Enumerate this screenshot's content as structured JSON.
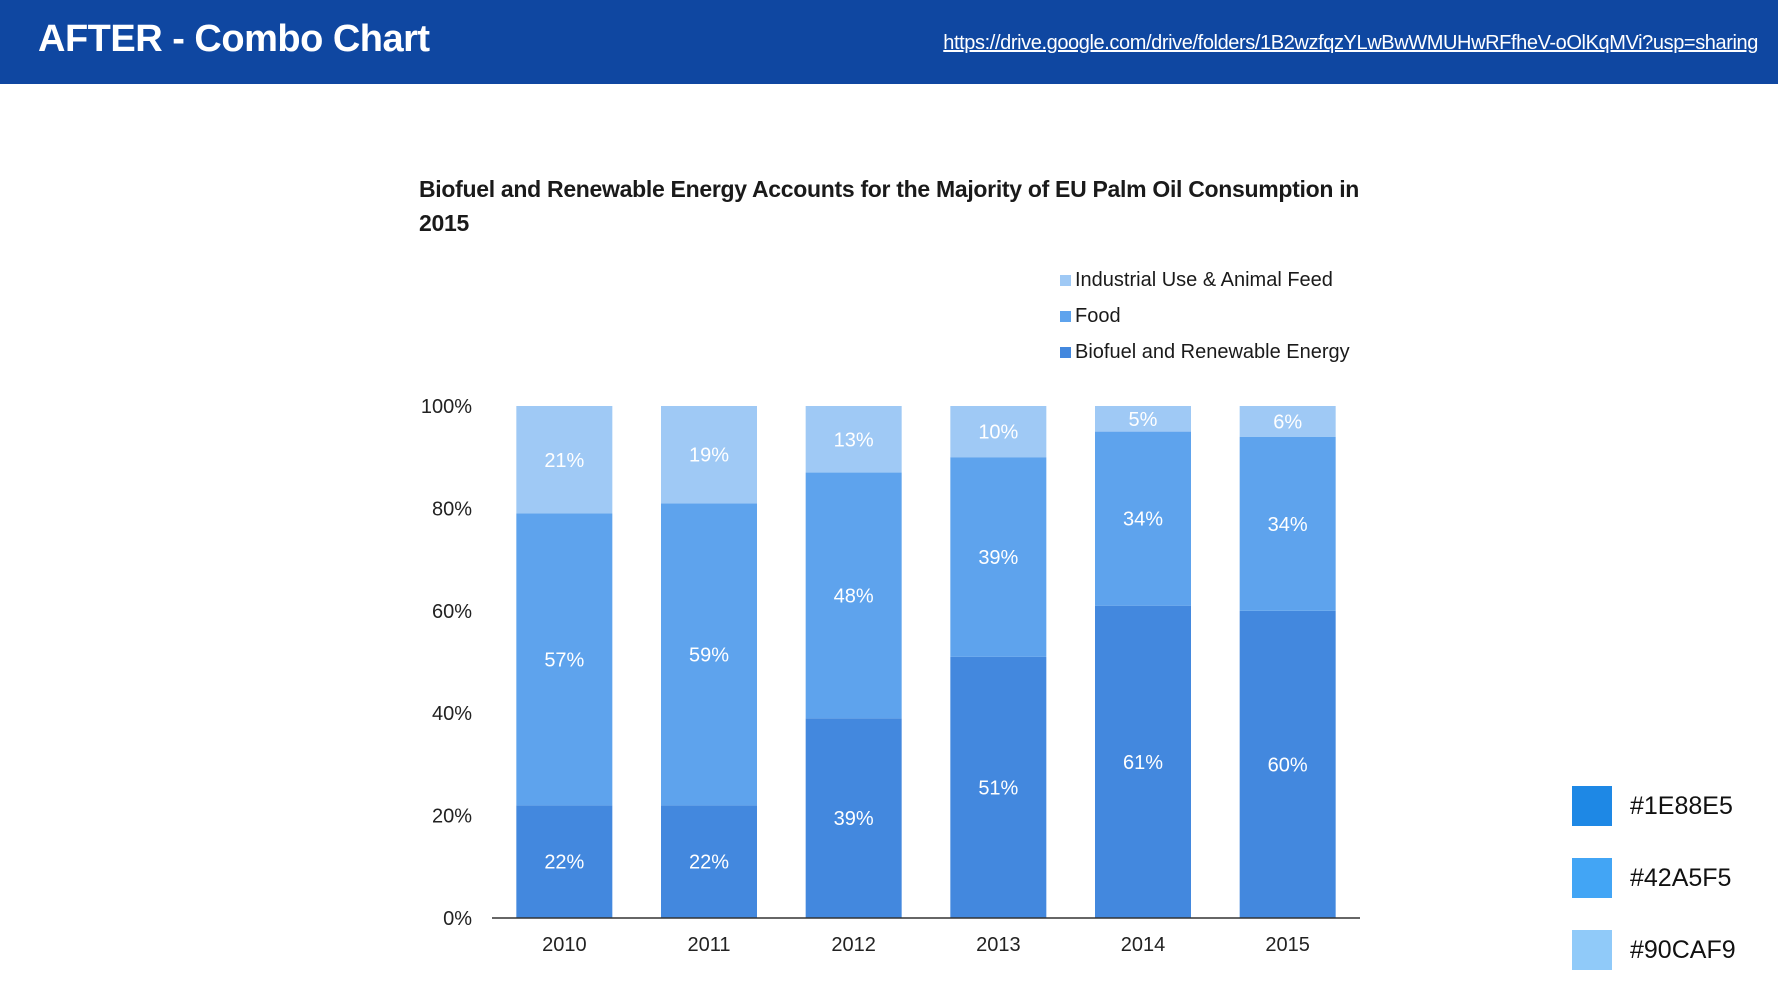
{
  "header": {
    "title": "AFTER - Combo Chart",
    "link": "https://drive.google.com/drive/folders/1B2wzfqzYLwBwWMUHwRFfheV-oOlKqMVi?usp=sharing"
  },
  "swatches": [
    {
      "color": "#1E88E5",
      "label": "#1E88E5"
    },
    {
      "color": "#42A5F5",
      "label": "#42A5F5"
    },
    {
      "color": "#90CAF9",
      "label": "#90CAF9"
    }
  ],
  "chart_data": {
    "type": "bar",
    "stacked": true,
    "title": "Biofuel and Renewable Energy Accounts for the Majority of EU Palm Oil Consumption in 2015",
    "xlabel": "",
    "ylabel": "",
    "categories": [
      "2010",
      "2011",
      "2012",
      "2013",
      "2014",
      "2015"
    ],
    "series": [
      {
        "name": "Biofuel and Renewable Energy",
        "color": "#4388de",
        "values": [
          22,
          22,
          39,
          51,
          61,
          60
        ]
      },
      {
        "name": "Food",
        "color": "#5ea3ed",
        "values": [
          57,
          59,
          48,
          39,
          34,
          34
        ]
      },
      {
        "name": "Industrial Use & Animal Feed",
        "color": "#9fc9f5",
        "values": [
          21,
          19,
          13,
          10,
          5,
          6
        ]
      }
    ],
    "legend_order": [
      "Industrial Use & Animal Feed",
      "Food",
      "Biofuel and Renewable Energy"
    ],
    "legend_position": "top-right",
    "ylim": [
      0,
      100
    ],
    "yticks": [
      "0%",
      "20%",
      "40%",
      "60%",
      "80%",
      "100%"
    ],
    "ytick_values": [
      0,
      20,
      40,
      60,
      80,
      100
    ],
    "grid": false,
    "data_label_suffix": "%"
  }
}
